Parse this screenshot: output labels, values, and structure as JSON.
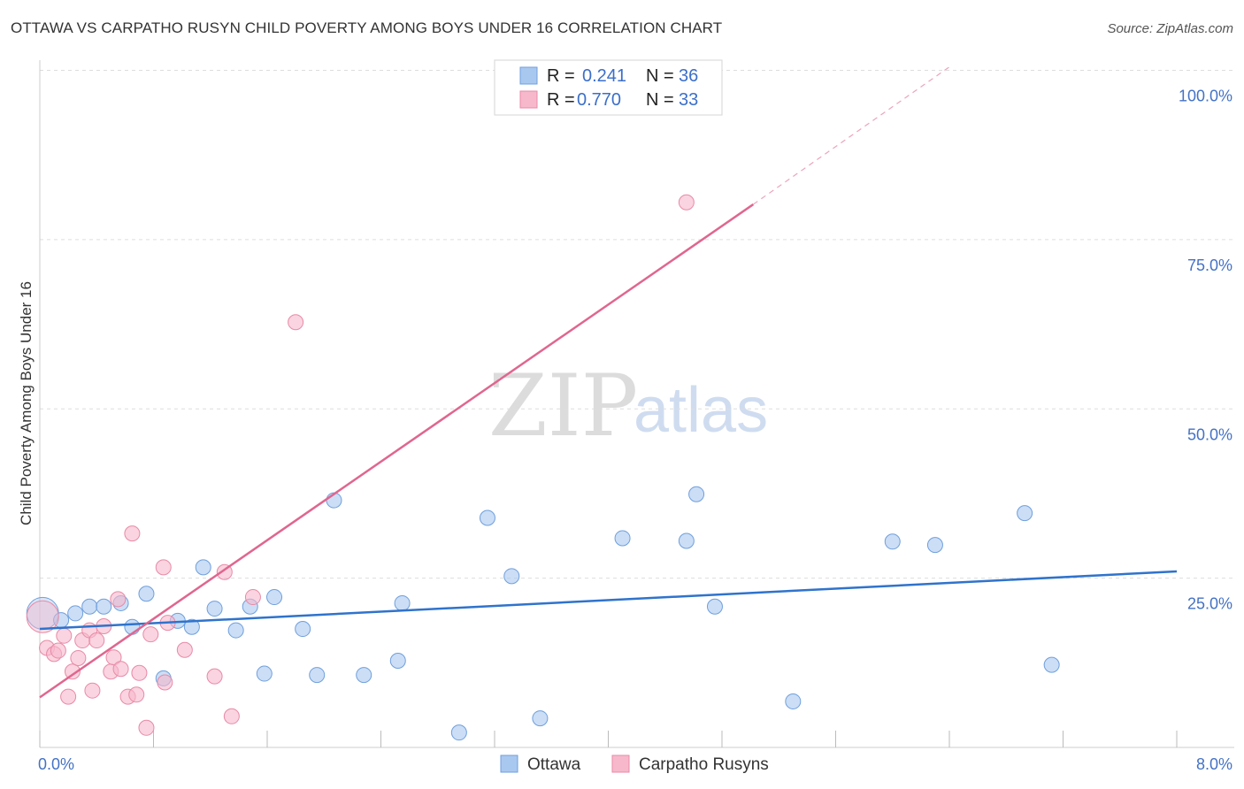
{
  "title": "OTTAWA VS CARPATHO RUSYN CHILD POVERTY AMONG BOYS UNDER 16 CORRELATION CHART",
  "source": "Source: ZipAtlas.com",
  "watermark": {
    "zip": "ZIP",
    "atlas": "atlas"
  },
  "legend": {
    "r_label": "R =",
    "n_label": "N =",
    "entries": [
      {
        "r": "0.241",
        "n": "36"
      },
      {
        "r": "0.770",
        "n": "33"
      }
    ]
  },
  "bottom_legend": [
    "Ottawa",
    "Carpatho Rusyns"
  ],
  "colors": {
    "ottawa_fill": "#a9c8f0",
    "ottawa_stroke": "#6f9fdc",
    "ottawa_line": "#2f73cc",
    "rusyn_fill": "#f7b8cb",
    "rusyn_stroke": "#e88aa7",
    "rusyn_line": "#e0668f",
    "tick_label": "#4472c4",
    "grid": "#dddddd"
  },
  "chart_data": {
    "type": "scatter",
    "title": "OTTAWA VS CARPATHO RUSYN CHILD POVERTY AMONG BOYS UNDER 16 CORRELATION CHART",
    "xlabel": "",
    "ylabel": "Child Poverty Among Boys Under 16",
    "xlim": [
      0,
      8
    ],
    "ylim": [
      0,
      105
    ],
    "x_tick_labels": [
      "0.0%",
      "8.0%"
    ],
    "y_ticks": [
      25,
      50,
      75,
      100
    ],
    "y_tick_labels": [
      "25.0%",
      "50.0%",
      "75.0%",
      "100.0%"
    ],
    "grid": true,
    "series": [
      {
        "name": "Ottawa",
        "r": 0.241,
        "n": 36,
        "trend": {
          "x0": 0,
          "y0": 17.5,
          "x1": 8,
          "y1": 26.0
        },
        "points": [
          {
            "x": 0.02,
            "y": 19.8,
            "big": true
          },
          {
            "x": 0.15,
            "y": 18.8
          },
          {
            "x": 0.25,
            "y": 19.8
          },
          {
            "x": 0.35,
            "y": 20.8
          },
          {
            "x": 0.45,
            "y": 20.8
          },
          {
            "x": 0.57,
            "y": 21.3
          },
          {
            "x": 0.65,
            "y": 17.8
          },
          {
            "x": 0.75,
            "y": 22.7
          },
          {
            "x": 0.87,
            "y": 10.2
          },
          {
            "x": 0.97,
            "y": 18.7
          },
          {
            "x": 1.07,
            "y": 17.8
          },
          {
            "x": 1.15,
            "y": 26.6
          },
          {
            "x": 1.23,
            "y": 20.5
          },
          {
            "x": 1.38,
            "y": 17.3
          },
          {
            "x": 1.48,
            "y": 20.8
          },
          {
            "x": 1.58,
            "y": 10.9
          },
          {
            "x": 1.65,
            "y": 22.2
          },
          {
            "x": 1.85,
            "y": 17.5
          },
          {
            "x": 1.95,
            "y": 10.7
          },
          {
            "x": 2.07,
            "y": 36.5
          },
          {
            "x": 2.28,
            "y": 10.7
          },
          {
            "x": 2.52,
            "y": 12.8
          },
          {
            "x": 2.55,
            "y": 21.3
          },
          {
            "x": 2.95,
            "y": 2.2
          },
          {
            "x": 3.15,
            "y": 33.9
          },
          {
            "x": 3.32,
            "y": 25.3
          },
          {
            "x": 3.52,
            "y": 4.3
          },
          {
            "x": 4.1,
            "y": 30.9
          },
          {
            "x": 4.55,
            "y": 30.5
          },
          {
            "x": 4.62,
            "y": 37.4
          },
          {
            "x": 4.75,
            "y": 20.8
          },
          {
            "x": 5.3,
            "y": 6.8
          },
          {
            "x": 6.0,
            "y": 30.4
          },
          {
            "x": 6.3,
            "y": 29.9
          },
          {
            "x": 6.93,
            "y": 34.6
          },
          {
            "x": 7.12,
            "y": 12.2
          }
        ]
      },
      {
        "name": "Carpatho Rusyns",
        "r": 0.77,
        "n": 33,
        "trend": {
          "x0": 0,
          "y0": 7.4,
          "x1": 5.02,
          "y1": 80.2,
          "dash_x1": 6.4,
          "dash_y1": 100.5
        },
        "points": [
          {
            "x": 0.02,
            "y": 19.3,
            "big": true
          },
          {
            "x": 0.05,
            "y": 14.7
          },
          {
            "x": 0.1,
            "y": 13.8
          },
          {
            "x": 0.13,
            "y": 14.3
          },
          {
            "x": 0.17,
            "y": 16.5
          },
          {
            "x": 0.2,
            "y": 7.5
          },
          {
            "x": 0.23,
            "y": 11.2
          },
          {
            "x": 0.27,
            "y": 13.2
          },
          {
            "x": 0.3,
            "y": 15.8
          },
          {
            "x": 0.35,
            "y": 17.3
          },
          {
            "x": 0.37,
            "y": 8.4
          },
          {
            "x": 0.4,
            "y": 15.8
          },
          {
            "x": 0.45,
            "y": 17.9
          },
          {
            "x": 0.5,
            "y": 11.2
          },
          {
            "x": 0.52,
            "y": 13.3
          },
          {
            "x": 0.55,
            "y": 21.9
          },
          {
            "x": 0.57,
            "y": 11.6
          },
          {
            "x": 0.62,
            "y": 7.5
          },
          {
            "x": 0.65,
            "y": 31.6
          },
          {
            "x": 0.68,
            "y": 7.8
          },
          {
            "x": 0.7,
            "y": 11.0
          },
          {
            "x": 0.75,
            "y": 2.9
          },
          {
            "x": 0.78,
            "y": 16.7
          },
          {
            "x": 0.87,
            "y": 26.6
          },
          {
            "x": 0.88,
            "y": 9.6
          },
          {
            "x": 0.9,
            "y": 18.4
          },
          {
            "x": 1.02,
            "y": 14.4
          },
          {
            "x": 1.23,
            "y": 10.5
          },
          {
            "x": 1.3,
            "y": 25.9
          },
          {
            "x": 1.35,
            "y": 4.6
          },
          {
            "x": 1.5,
            "y": 22.2
          },
          {
            "x": 1.8,
            "y": 62.8
          },
          {
            "x": 4.55,
            "y": 80.5
          }
        ]
      }
    ]
  }
}
